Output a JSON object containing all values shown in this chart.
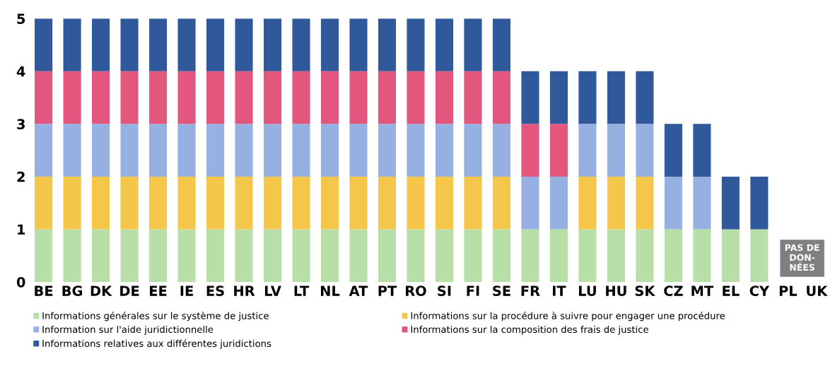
{
  "chart_data": {
    "type": "bar",
    "stacked": true,
    "categories": [
      "BE",
      "BG",
      "DK",
      "DE",
      "EE",
      "IE",
      "ES",
      "HR",
      "LV",
      "LT",
      "NL",
      "AT",
      "PT",
      "RO",
      "SI",
      "FI",
      "SE",
      "FR",
      "IT",
      "LU",
      "HU",
      "SK",
      "CZ",
      "MT",
      "EL",
      "CY",
      "PL",
      "UK"
    ],
    "series": [
      {
        "name": "Informations générales sur le système de justice",
        "color": "#b8dfa8",
        "values": [
          1,
          1,
          1,
          1,
          1,
          1,
          1,
          1,
          1,
          1,
          1,
          1,
          1,
          1,
          1,
          1,
          1,
          1,
          1,
          1,
          1,
          1,
          1,
          1,
          1,
          1,
          null,
          null
        ]
      },
      {
        "name": "Informations sur la procédure à suivre pour engager une procédure",
        "color": "#f4c64a",
        "values": [
          1,
          1,
          1,
          1,
          1,
          1,
          1,
          1,
          1,
          1,
          1,
          1,
          1,
          1,
          1,
          1,
          1,
          0,
          0,
          1,
          1,
          1,
          0,
          0,
          0,
          0,
          null,
          null
        ]
      },
      {
        "name": "Information sur l'aide juridictionnelle",
        "color": "#97b0e2",
        "values": [
          1,
          1,
          1,
          1,
          1,
          1,
          1,
          1,
          1,
          1,
          1,
          1,
          1,
          1,
          1,
          1,
          1,
          1,
          1,
          1,
          1,
          1,
          1,
          1,
          0,
          0,
          null,
          null
        ]
      },
      {
        "name": "Informations sur la composition des frais de justice",
        "color": "#e3567e",
        "values": [
          1,
          1,
          1,
          1,
          1,
          1,
          1,
          1,
          1,
          1,
          1,
          1,
          1,
          1,
          1,
          1,
          1,
          1,
          1,
          0,
          0,
          0,
          0,
          0,
          0,
          0,
          null,
          null
        ]
      },
      {
        "name": "Informations relatives aux différentes juridictions",
        "color": "#30599c",
        "values": [
          1,
          1,
          1,
          1,
          1,
          1,
          1,
          1,
          1,
          1,
          1,
          1,
          1,
          1,
          1,
          1,
          1,
          1,
          1,
          1,
          1,
          1,
          1,
          1,
          1,
          1,
          null,
          null
        ]
      }
    ],
    "ylim": [
      0,
      5
    ],
    "yticks": [
      0,
      1,
      2,
      3,
      4,
      5
    ],
    "grid": false,
    "legend": "bottom",
    "annotations": [
      "PAS DE\nDON-\nNÉES"
    ]
  }
}
